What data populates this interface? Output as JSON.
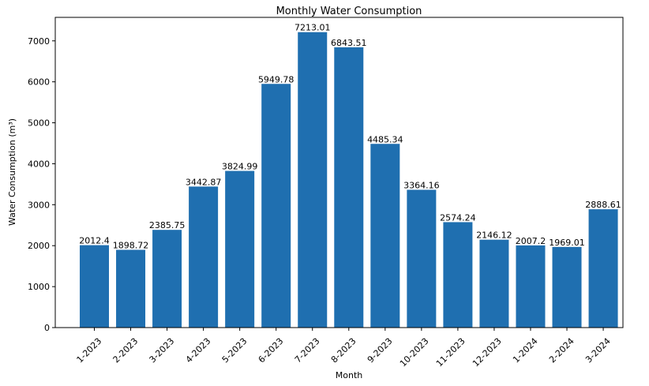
{
  "chart_data": {
    "type": "bar",
    "title": "Monthly Water Consumption",
    "xlabel": "Month",
    "ylabel": "Water Consumption (m³)",
    "categories": [
      "1-2023",
      "2-2023",
      "3-2023",
      "4-2023",
      "5-2023",
      "6-2023",
      "7-2023",
      "8-2023",
      "9-2023",
      "10-2023",
      "11-2023",
      "12-2023",
      "1-2024",
      "2-2024",
      "3-2024"
    ],
    "values": [
      2012.4,
      1898.72,
      2385.75,
      3442.87,
      3824.99,
      5949.78,
      7213.01,
      6843.51,
      4485.34,
      3364.16,
      2574.24,
      2146.12,
      2007.2,
      1969.01,
      2888.61
    ],
    "value_labels": [
      "2012.4",
      "1898.72",
      "2385.75",
      "3442.87",
      "3824.99",
      "5949.78",
      "7213.01",
      "6843.51",
      "4485.34",
      "3364.16",
      "2574.24",
      "2146.12",
      "2007.2",
      "1969.01",
      "2888.61"
    ],
    "ylim": [
      0,
      7573.66
    ],
    "yticks": [
      0,
      1000,
      2000,
      3000,
      4000,
      5000,
      6000,
      7000
    ],
    "ytick_labels": [
      "0",
      "1000",
      "2000",
      "3000",
      "4000",
      "5000",
      "6000",
      "7000"
    ],
    "grid": false,
    "bar_color": "#1f6fb0"
  }
}
